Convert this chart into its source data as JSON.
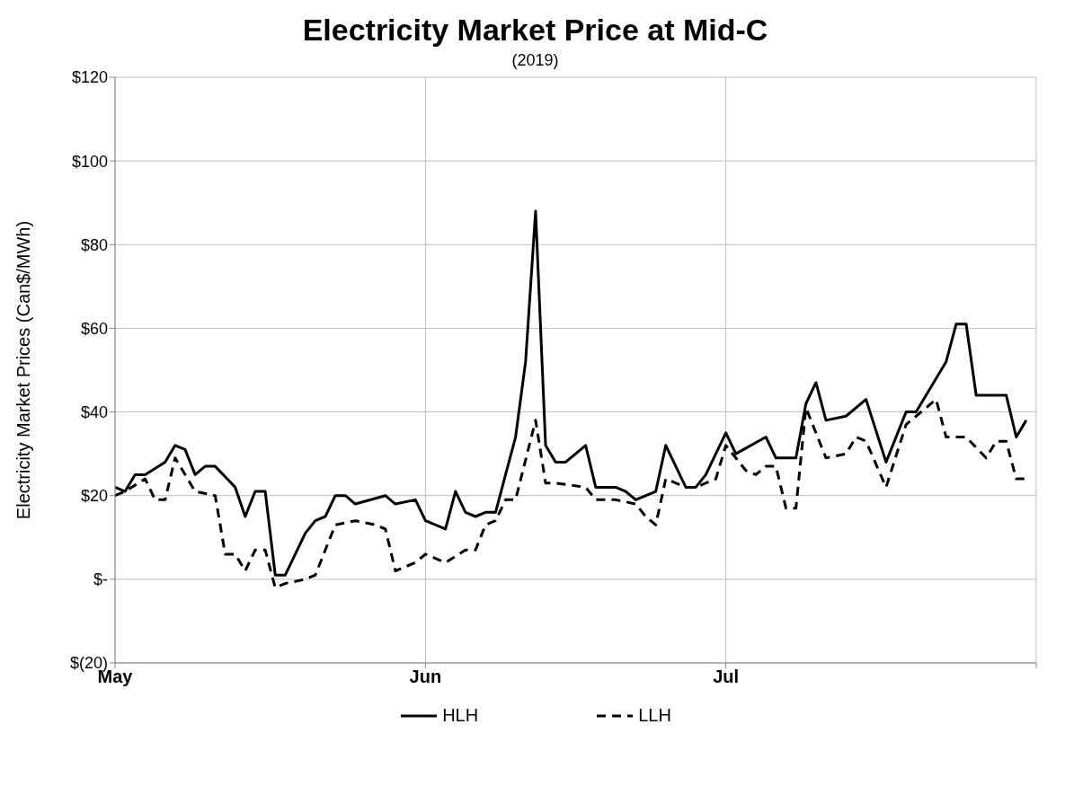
{
  "chart_data": {
    "type": "line",
    "title": "Electricity Market Price at Mid-C",
    "subtitle": "(2019)",
    "ylabel": "Electricity Market Prices (Can$/MWh)",
    "xlim": [
      "2019-05-01",
      "2019-08-01"
    ],
    "xticks": [
      {
        "value": "2019-05-01",
        "label": "May"
      },
      {
        "value": "2019-06-01",
        "label": "Jun"
      },
      {
        "value": "2019-07-01",
        "label": "Jul"
      },
      {
        "value": "2019-08-01",
        "label": null
      }
    ],
    "ylim": [
      -20,
      120
    ],
    "yticks": [
      {
        "value": -20,
        "label": "$(20)"
      },
      {
        "value": 0,
        "label": "$-"
      },
      {
        "value": 20,
        "label": "$20"
      },
      {
        "value": 40,
        "label": "$40"
      },
      {
        "value": 60,
        "label": "$60"
      },
      {
        "value": 80,
        "label": "$80"
      },
      {
        "value": 100,
        "label": "$100"
      },
      {
        "value": 120,
        "label": "$120"
      }
    ],
    "grid": true,
    "legend": "bottom",
    "marker": "none",
    "series": [
      {
        "name": "HLH",
        "color": "#000000",
        "line_style": "solid",
        "x": [
          "2019-05-01",
          "2019-05-02",
          "2019-05-03",
          "2019-05-04",
          "2019-05-06",
          "2019-05-07",
          "2019-05-08",
          "2019-05-09",
          "2019-05-10",
          "2019-05-11",
          "2019-05-13",
          "2019-05-14",
          "2019-05-15",
          "2019-05-16",
          "2019-05-17",
          "2019-05-18",
          "2019-05-20",
          "2019-05-21",
          "2019-05-22",
          "2019-05-23",
          "2019-05-24",
          "2019-05-25",
          "2019-05-28",
          "2019-05-29",
          "2019-05-31",
          "2019-06-01",
          "2019-06-03",
          "2019-06-04",
          "2019-06-05",
          "2019-06-06",
          "2019-06-07",
          "2019-06-08",
          "2019-06-10",
          "2019-06-11",
          "2019-06-12",
          "2019-06-13",
          "2019-06-14",
          "2019-06-15",
          "2019-06-17",
          "2019-06-18",
          "2019-06-20",
          "2019-06-21",
          "2019-06-22",
          "2019-06-24",
          "2019-06-25",
          "2019-06-27",
          "2019-06-28",
          "2019-06-29",
          "2019-07-01",
          "2019-07-02",
          "2019-07-05",
          "2019-07-06",
          "2019-07-08",
          "2019-07-09",
          "2019-07-10",
          "2019-07-11",
          "2019-07-13",
          "2019-07-15",
          "2019-07-17",
          "2019-07-19",
          "2019-07-20",
          "2019-07-23",
          "2019-07-24",
          "2019-07-25",
          "2019-07-26",
          "2019-07-29",
          "2019-07-30",
          "2019-07-31"
        ],
        "values": [
          22,
          21,
          25,
          25,
          28,
          32,
          31,
          25,
          27,
          27,
          22,
          15,
          21,
          21,
          1,
          1,
          11,
          14,
          15,
          20,
          20,
          18,
          20,
          18,
          19,
          14,
          12,
          21,
          16,
          15,
          16,
          16,
          34,
          52,
          88,
          32,
          28,
          28,
          32,
          22,
          22,
          21,
          19,
          21,
          32,
          22,
          22,
          25,
          35,
          30,
          34,
          29,
          29,
          42,
          47,
          38,
          39,
          43,
          28,
          40,
          40,
          52,
          61,
          61,
          44,
          44,
          34,
          38
        ]
      },
      {
        "name": "LLH",
        "color": "#000000",
        "line_style": "dashed",
        "x": [
          "2019-05-01",
          "2019-05-02",
          "2019-05-04",
          "2019-05-05",
          "2019-05-06",
          "2019-05-07",
          "2019-05-09",
          "2019-05-11",
          "2019-05-12",
          "2019-05-13",
          "2019-05-14",
          "2019-05-15",
          "2019-05-16",
          "2019-05-17",
          "2019-05-18",
          "2019-05-20",
          "2019-05-21",
          "2019-05-23",
          "2019-05-25",
          "2019-05-27",
          "2019-05-28",
          "2019-05-29",
          "2019-05-31",
          "2019-06-01",
          "2019-06-03",
          "2019-06-05",
          "2019-06-06",
          "2019-06-07",
          "2019-06-08",
          "2019-06-09",
          "2019-06-10",
          "2019-06-12",
          "2019-06-13",
          "2019-06-14",
          "2019-06-17",
          "2019-06-18",
          "2019-06-20",
          "2019-06-22",
          "2019-06-23",
          "2019-06-24",
          "2019-06-25",
          "2019-06-27",
          "2019-06-28",
          "2019-06-30",
          "2019-07-01",
          "2019-07-03",
          "2019-07-04",
          "2019-07-05",
          "2019-07-06",
          "2019-07-07",
          "2019-07-08",
          "2019-07-09",
          "2019-07-11",
          "2019-07-13",
          "2019-07-14",
          "2019-07-15",
          "2019-07-17",
          "2019-07-19",
          "2019-07-20",
          "2019-07-22",
          "2019-07-23",
          "2019-07-25",
          "2019-07-27",
          "2019-07-28",
          "2019-07-29",
          "2019-07-30",
          "2019-07-31"
        ],
        "values": [
          20,
          21,
          24,
          19,
          19,
          29,
          21,
          20,
          6,
          6,
          2,
          7,
          7,
          -2,
          -1,
          0,
          1,
          13,
          14,
          13,
          12,
          2,
          4,
          6,
          4,
          7,
          7,
          13,
          14,
          19,
          19,
          38,
          23,
          23,
          22,
          19,
          19,
          18,
          15,
          13,
          24,
          22,
          22,
          24,
          32,
          26,
          25,
          27,
          27,
          17,
          17,
          41,
          29,
          30,
          34,
          33,
          22,
          37,
          39,
          43,
          34,
          34,
          29,
          33,
          33,
          24,
          24
        ]
      }
    ]
  }
}
